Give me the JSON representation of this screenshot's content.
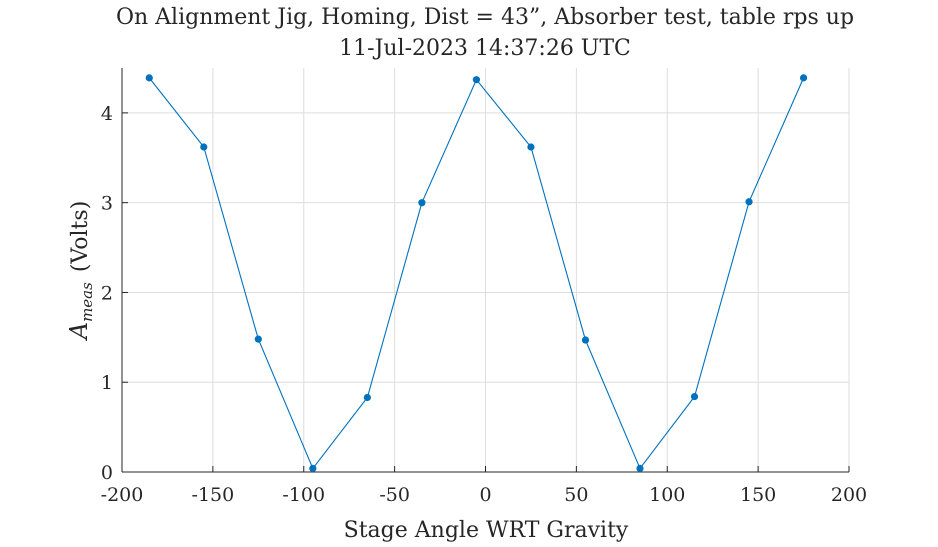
{
  "chart_data": {
    "type": "line",
    "title": "On Alignment Jig, Homing, Dist = 43”, Absorber test, table rps up",
    "subtitle": "11-Jul-2023 14:37:26 UTC",
    "xlabel": "Stage Angle WRT Gravity",
    "ylabel": "(Volts)",
    "ylabel_symbol": "A",
    "ylabel_subscript": "meas",
    "xlim": [
      -200,
      200
    ],
    "ylim": [
      0,
      4.5
    ],
    "xticks": [
      -200,
      -150,
      -100,
      -50,
      0,
      50,
      100,
      150,
      200
    ],
    "xtick_labels": [
      "-200",
      "-150",
      "-100",
      "-50",
      "0",
      "50",
      "100",
      "150",
      "200"
    ],
    "yticks": [
      0,
      1,
      2,
      3,
      4
    ],
    "ytick_labels": [
      "0",
      "1",
      "2",
      "3",
      "4"
    ],
    "grid": true,
    "color": "#0072BD",
    "series": [
      {
        "x": [
          -185,
          -155,
          -125,
          -95,
          -65,
          -35,
          -5,
          25,
          55,
          85,
          115,
          145,
          175
        ],
        "y": [
          4.39,
          3.62,
          1.48,
          0.04,
          0.83,
          3.0,
          4.37,
          3.62,
          1.47,
          0.04,
          0.84,
          3.01,
          4.39
        ]
      }
    ]
  }
}
